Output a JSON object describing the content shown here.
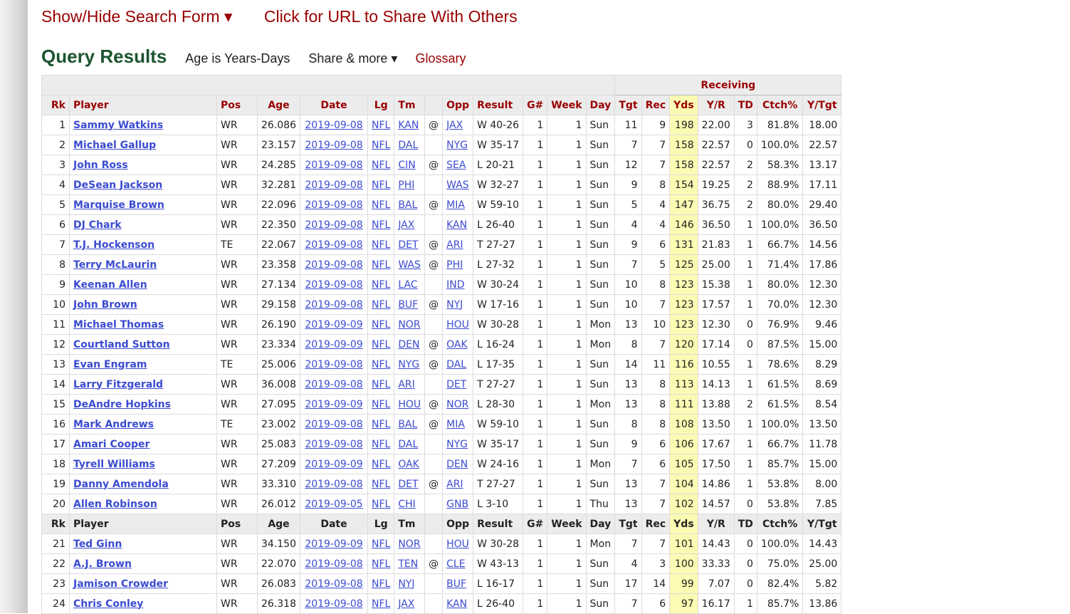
{
  "nav": {
    "show_hide": "Show/Hide Search Form ▾",
    "share_url": "Click for URL to Share With Others"
  },
  "query": {
    "title": "Query Results",
    "age_note": "Age is Years-Days",
    "share_more": "Share & more ▾",
    "glossary": "Glossary"
  },
  "table": {
    "group_header": "Receiving",
    "columns": [
      "Rk",
      "Player",
      "Pos",
      "Age",
      "Date",
      "Lg",
      "Tm",
      "",
      "Opp",
      "Result",
      "G#",
      "Week",
      "Day",
      "Tgt",
      "Rec",
      "Yds",
      "Y/R",
      "TD",
      "Ctch%",
      "Y/Tgt"
    ],
    "rows": [
      [
        "1",
        "Sammy Watkins",
        "WR",
        "26.086",
        "2019-09-08",
        "NFL",
        "KAN",
        "@",
        "JAX",
        "W 40-26",
        "1",
        "1",
        "Sun",
        "11",
        "9",
        "198",
        "22.00",
        "3",
        "81.8%",
        "18.00"
      ],
      [
        "2",
        "Michael Gallup",
        "WR",
        "23.157",
        "2019-09-08",
        "NFL",
        "DAL",
        "",
        "NYG",
        "W 35-17",
        "1",
        "1",
        "Sun",
        "7",
        "7",
        "158",
        "22.57",
        "0",
        "100.0%",
        "22.57"
      ],
      [
        "3",
        "John Ross",
        "WR",
        "24.285",
        "2019-09-08",
        "NFL",
        "CIN",
        "@",
        "SEA",
        "L 20-21",
        "1",
        "1",
        "Sun",
        "12",
        "7",
        "158",
        "22.57",
        "2",
        "58.3%",
        "13.17"
      ],
      [
        "4",
        "DeSean Jackson",
        "WR",
        "32.281",
        "2019-09-08",
        "NFL",
        "PHI",
        "",
        "WAS",
        "W 32-27",
        "1",
        "1",
        "Sun",
        "9",
        "8",
        "154",
        "19.25",
        "2",
        "88.9%",
        "17.11"
      ],
      [
        "5",
        "Marquise Brown",
        "WR",
        "22.096",
        "2019-09-08",
        "NFL",
        "BAL",
        "@",
        "MIA",
        "W 59-10",
        "1",
        "1",
        "Sun",
        "5",
        "4",
        "147",
        "36.75",
        "2",
        "80.0%",
        "29.40"
      ],
      [
        "6",
        "DJ Chark",
        "WR",
        "22.350",
        "2019-09-08",
        "NFL",
        "JAX",
        "",
        "KAN",
        "L 26-40",
        "1",
        "1",
        "Sun",
        "4",
        "4",
        "146",
        "36.50",
        "1",
        "100.0%",
        "36.50"
      ],
      [
        "7",
        "T.J. Hockenson",
        "TE",
        "22.067",
        "2019-09-08",
        "NFL",
        "DET",
        "@",
        "ARI",
        "T 27-27",
        "1",
        "1",
        "Sun",
        "9",
        "6",
        "131",
        "21.83",
        "1",
        "66.7%",
        "14.56"
      ],
      [
        "8",
        "Terry McLaurin",
        "WR",
        "23.358",
        "2019-09-08",
        "NFL",
        "WAS",
        "@",
        "PHI",
        "L 27-32",
        "1",
        "1",
        "Sun",
        "7",
        "5",
        "125",
        "25.00",
        "1",
        "71.4%",
        "17.86"
      ],
      [
        "9",
        "Keenan Allen",
        "WR",
        "27.134",
        "2019-09-08",
        "NFL",
        "LAC",
        "",
        "IND",
        "W 30-24",
        "1",
        "1",
        "Sun",
        "10",
        "8",
        "123",
        "15.38",
        "1",
        "80.0%",
        "12.30"
      ],
      [
        "10",
        "John Brown",
        "WR",
        "29.158",
        "2019-09-08",
        "NFL",
        "BUF",
        "@",
        "NYJ",
        "W 17-16",
        "1",
        "1",
        "Sun",
        "10",
        "7",
        "123",
        "17.57",
        "1",
        "70.0%",
        "12.30"
      ],
      [
        "11",
        "Michael Thomas",
        "WR",
        "26.190",
        "2019-09-09",
        "NFL",
        "NOR",
        "",
        "HOU",
        "W 30-28",
        "1",
        "1",
        "Mon",
        "13",
        "10",
        "123",
        "12.30",
        "0",
        "76.9%",
        "9.46"
      ],
      [
        "12",
        "Courtland Sutton",
        "WR",
        "23.334",
        "2019-09-09",
        "NFL",
        "DEN",
        "@",
        "OAK",
        "L 16-24",
        "1",
        "1",
        "Mon",
        "8",
        "7",
        "120",
        "17.14",
        "0",
        "87.5%",
        "15.00"
      ],
      [
        "13",
        "Evan Engram",
        "TE",
        "25.006",
        "2019-09-08",
        "NFL",
        "NYG",
        "@",
        "DAL",
        "L 17-35",
        "1",
        "1",
        "Sun",
        "14",
        "11",
        "116",
        "10.55",
        "1",
        "78.6%",
        "8.29"
      ],
      [
        "14",
        "Larry Fitzgerald",
        "WR",
        "36.008",
        "2019-09-08",
        "NFL",
        "ARI",
        "",
        "DET",
        "T 27-27",
        "1",
        "1",
        "Sun",
        "13",
        "8",
        "113",
        "14.13",
        "1",
        "61.5%",
        "8.69"
      ],
      [
        "15",
        "DeAndre Hopkins",
        "WR",
        "27.095",
        "2019-09-09",
        "NFL",
        "HOU",
        "@",
        "NOR",
        "L 28-30",
        "1",
        "1",
        "Mon",
        "13",
        "8",
        "111",
        "13.88",
        "2",
        "61.5%",
        "8.54"
      ],
      [
        "16",
        "Mark Andrews",
        "TE",
        "23.002",
        "2019-09-08",
        "NFL",
        "BAL",
        "@",
        "MIA",
        "W 59-10",
        "1",
        "1",
        "Sun",
        "8",
        "8",
        "108",
        "13.50",
        "1",
        "100.0%",
        "13.50"
      ],
      [
        "17",
        "Amari Cooper",
        "WR",
        "25.083",
        "2019-09-08",
        "NFL",
        "DAL",
        "",
        "NYG",
        "W 35-17",
        "1",
        "1",
        "Sun",
        "9",
        "6",
        "106",
        "17.67",
        "1",
        "66.7%",
        "11.78"
      ],
      [
        "18",
        "Tyrell Williams",
        "WR",
        "27.209",
        "2019-09-09",
        "NFL",
        "OAK",
        "",
        "DEN",
        "W 24-16",
        "1",
        "1",
        "Mon",
        "7",
        "6",
        "105",
        "17.50",
        "1",
        "85.7%",
        "15.00"
      ],
      [
        "19",
        "Danny Amendola",
        "WR",
        "33.310",
        "2019-09-08",
        "NFL",
        "DET",
        "@",
        "ARI",
        "T 27-27",
        "1",
        "1",
        "Sun",
        "13",
        "7",
        "104",
        "14.86",
        "1",
        "53.8%",
        "8.00"
      ],
      [
        "20",
        "Allen Robinson",
        "WR",
        "26.012",
        "2019-09-05",
        "NFL",
        "CHI",
        "",
        "GNB",
        "L 3-10",
        "1",
        "1",
        "Thu",
        "13",
        "7",
        "102",
        "14.57",
        "0",
        "53.8%",
        "7.85"
      ]
    ],
    "rows2": [
      [
        "21",
        "Ted Ginn",
        "WR",
        "34.150",
        "2019-09-09",
        "NFL",
        "NOR",
        "",
        "HOU",
        "W 30-28",
        "1",
        "1",
        "Mon",
        "7",
        "7",
        "101",
        "14.43",
        "0",
        "100.0%",
        "14.43"
      ],
      [
        "22",
        "A.J. Brown",
        "WR",
        "22.070",
        "2019-09-08",
        "NFL",
        "TEN",
        "@",
        "CLE",
        "W 43-13",
        "1",
        "1",
        "Sun",
        "4",
        "3",
        "100",
        "33.33",
        "0",
        "75.0%",
        "25.00"
      ],
      [
        "23",
        "Jamison Crowder",
        "WR",
        "26.083",
        "2019-09-08",
        "NFL",
        "NYJ",
        "",
        "BUF",
        "L 16-17",
        "1",
        "1",
        "Sun",
        "17",
        "14",
        "99",
        "7.07",
        "0",
        "82.4%",
        "5.82"
      ],
      [
        "24",
        "Chris Conley",
        "WR",
        "26.318",
        "2019-09-08",
        "NFL",
        "JAX",
        "",
        "KAN",
        "L 26-40",
        "1",
        "1",
        "Sun",
        "7",
        "6",
        "97",
        "16.17",
        "1",
        "85.7%",
        "13.86"
      ]
    ]
  }
}
